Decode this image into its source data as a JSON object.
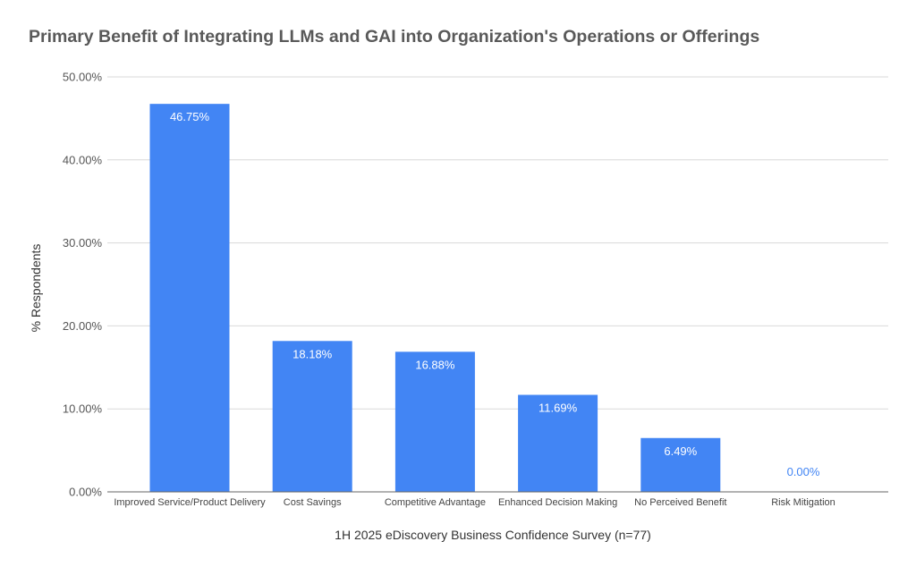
{
  "chart_data": {
    "type": "bar",
    "title": "Primary Benefit of Integrating LLMs and GAI into Organization's Operations or Offerings",
    "xlabel": "1H 2025 eDiscovery Business Confidence Survey (n=77)",
    "ylabel": "% Respondents",
    "categories": [
      "Improved Service/Product Delivery",
      "Cost Savings",
      "Competitive Advantage",
      "Enhanced Decision Making",
      "No Perceived Benefit",
      "Risk Mitigation"
    ],
    "values": [
      46.75,
      18.18,
      16.88,
      11.69,
      6.49,
      0.0
    ],
    "data_labels": [
      "46.75%",
      "18.18%",
      "16.88%",
      "11.69%",
      "6.49%",
      "0.00%"
    ],
    "ylim": [
      0,
      50
    ],
    "yticks": [
      0,
      10,
      20,
      30,
      40,
      50
    ],
    "ytick_labels": [
      "0.00%",
      "10.00%",
      "20.00%",
      "30.00%",
      "40.00%",
      "50.00%"
    ],
    "grid": true,
    "legend": "none",
    "colors": {
      "bar": "#4285f4",
      "inside_label": "#ffffff",
      "outside_label": "#4285f4",
      "grid": "#d9d9d9",
      "axis": "#666666",
      "title": "#595959"
    }
  }
}
